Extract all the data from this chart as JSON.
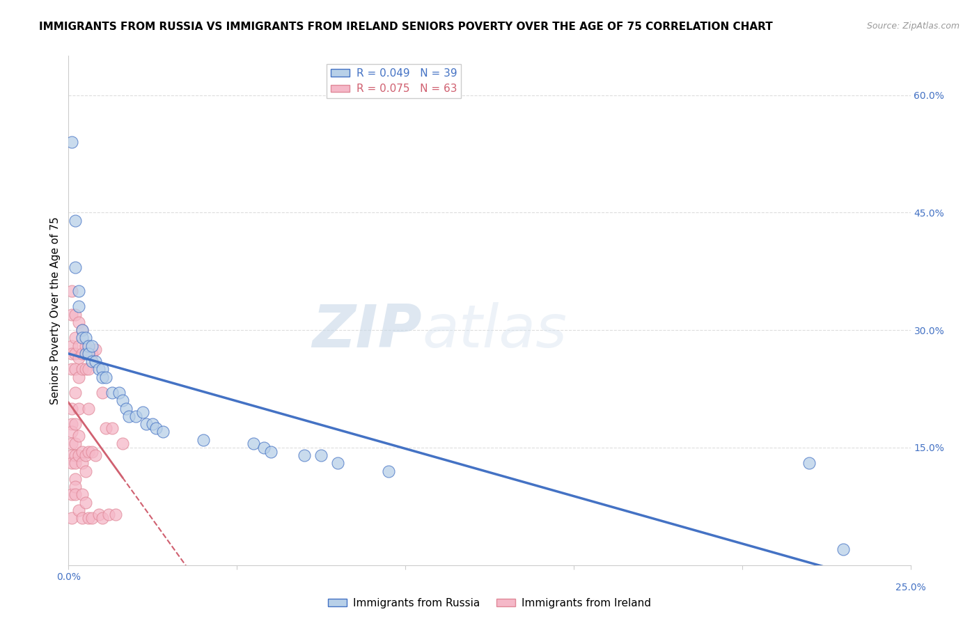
{
  "title": "IMMIGRANTS FROM RUSSIA VS IMMIGRANTS FROM IRELAND SENIORS POVERTY OVER THE AGE OF 75 CORRELATION CHART",
  "source": "Source: ZipAtlas.com",
  "ylabel": "Seniors Poverty Over the Age of 75",
  "xlim": [
    0.0,
    0.25
  ],
  "ylim": [
    0.0,
    0.65
  ],
  "xticks": [
    0.0,
    0.05,
    0.1,
    0.15,
    0.2,
    0.25
  ],
  "yticks_right": [
    0.15,
    0.3,
    0.45,
    0.6
  ],
  "ytick_labels_right": [
    "15.0%",
    "30.0%",
    "45.0%",
    "60.0%"
  ],
  "legend1_label": "R = 0.049   N = 39",
  "legend2_label": "R = 0.075   N = 63",
  "legend_label1": "Immigrants from Russia",
  "legend_label2": "Immigrants from Ireland",
  "russia_color": "#b8d0e8",
  "ireland_color": "#f5b8c8",
  "russia_line_color": "#4472c4",
  "ireland_line_color": "#d06070",
  "background_color": "#ffffff",
  "russia_x": [
    0.001,
    0.002,
    0.002,
    0.003,
    0.003,
    0.004,
    0.004,
    0.005,
    0.005,
    0.006,
    0.006,
    0.007,
    0.007,
    0.008,
    0.009,
    0.01,
    0.01,
    0.011,
    0.013,
    0.015,
    0.016,
    0.017,
    0.018,
    0.02,
    0.022,
    0.023,
    0.025,
    0.026,
    0.028,
    0.04,
    0.055,
    0.058,
    0.06,
    0.07,
    0.075,
    0.08,
    0.095,
    0.22,
    0.23
  ],
  "russia_y": [
    0.54,
    0.44,
    0.38,
    0.35,
    0.33,
    0.3,
    0.29,
    0.29,
    0.27,
    0.28,
    0.27,
    0.28,
    0.26,
    0.26,
    0.25,
    0.25,
    0.24,
    0.24,
    0.22,
    0.22,
    0.21,
    0.2,
    0.19,
    0.19,
    0.195,
    0.18,
    0.18,
    0.175,
    0.17,
    0.16,
    0.155,
    0.15,
    0.145,
    0.14,
    0.14,
    0.13,
    0.12,
    0.13,
    0.02
  ],
  "ireland_x": [
    0.001,
    0.001,
    0.001,
    0.001,
    0.001,
    0.001,
    0.001,
    0.001,
    0.001,
    0.001,
    0.001,
    0.001,
    0.001,
    0.002,
    0.002,
    0.002,
    0.002,
    0.002,
    0.002,
    0.002,
    0.002,
    0.002,
    0.002,
    0.002,
    0.002,
    0.003,
    0.003,
    0.003,
    0.003,
    0.003,
    0.003,
    0.003,
    0.003,
    0.004,
    0.004,
    0.004,
    0.004,
    0.004,
    0.004,
    0.004,
    0.005,
    0.005,
    0.005,
    0.005,
    0.005,
    0.006,
    0.006,
    0.006,
    0.006,
    0.006,
    0.007,
    0.007,
    0.007,
    0.008,
    0.008,
    0.009,
    0.01,
    0.01,
    0.011,
    0.012,
    0.013,
    0.014,
    0.016
  ],
  "ireland_y": [
    0.35,
    0.32,
    0.28,
    0.27,
    0.25,
    0.2,
    0.18,
    0.17,
    0.155,
    0.14,
    0.13,
    0.09,
    0.06,
    0.32,
    0.29,
    0.27,
    0.25,
    0.22,
    0.18,
    0.155,
    0.14,
    0.13,
    0.11,
    0.1,
    0.09,
    0.31,
    0.28,
    0.265,
    0.24,
    0.2,
    0.165,
    0.14,
    0.07,
    0.3,
    0.27,
    0.25,
    0.145,
    0.13,
    0.09,
    0.06,
    0.28,
    0.25,
    0.14,
    0.12,
    0.08,
    0.27,
    0.25,
    0.2,
    0.145,
    0.06,
    0.27,
    0.145,
    0.06,
    0.275,
    0.14,
    0.065,
    0.22,
    0.06,
    0.175,
    0.065,
    0.175,
    0.065,
    0.155
  ],
  "watermark_zip": "ZIP",
  "watermark_atlas": "atlas",
  "title_fontsize": 11,
  "axis_label_fontsize": 11,
  "tick_fontsize": 10
}
